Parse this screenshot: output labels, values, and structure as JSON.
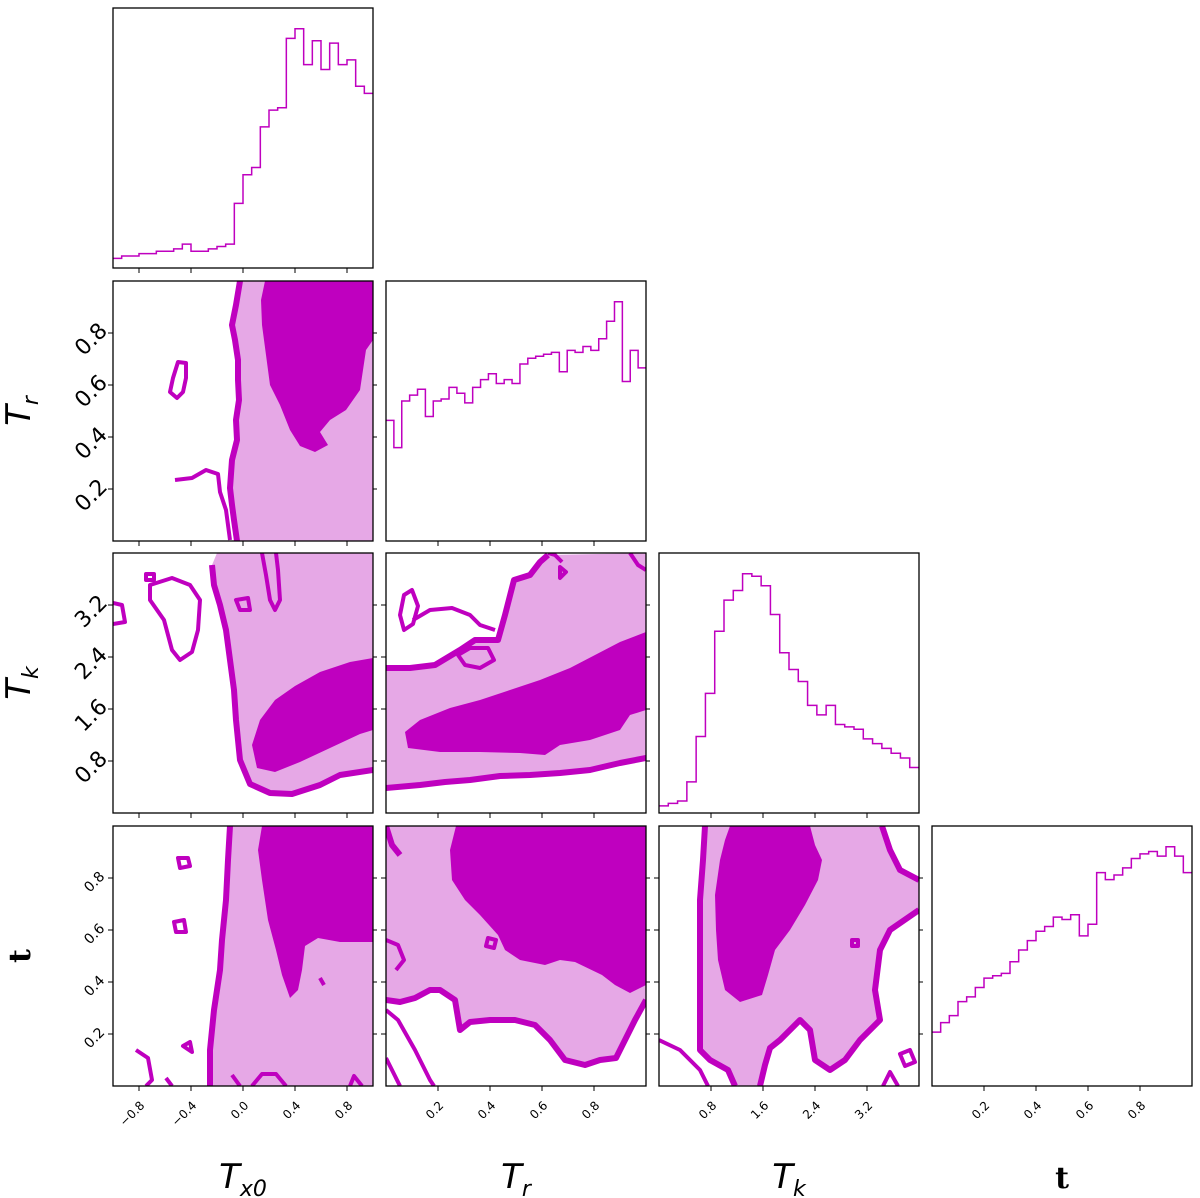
{
  "chart_data": {
    "type": "corner",
    "color": "#bf00bf",
    "fill_light": "#e6a8e6",
    "parameters": [
      {
        "key": "Tx0",
        "label_main": "T",
        "label_sub": "x0",
        "range": [
          -1.0,
          1.0
        ],
        "ticks": [
          "−0.8",
          "−0.4",
          "0.0",
          "0.4",
          "0.8"
        ],
        "tick_values": [
          -0.8,
          -0.4,
          0.0,
          0.4,
          0.8
        ]
      },
      {
        "key": "Tr",
        "label_main": "T",
        "label_sub": "r",
        "range": [
          0.0,
          1.0
        ],
        "ticks": [
          "0.2",
          "0.4",
          "0.6",
          "0.8"
        ],
        "tick_values": [
          0.2,
          0.4,
          0.6,
          0.8
        ]
      },
      {
        "key": "Tk",
        "label_main": "T",
        "label_sub": "k",
        "range": [
          0.0,
          4.0
        ],
        "ticks": [
          "0.8",
          "1.6",
          "2.4",
          "3.2"
        ],
        "tick_values": [
          0.8,
          1.6,
          2.4,
          3.2
        ]
      },
      {
        "key": "t",
        "label_main": "t",
        "label_sub": "",
        "range": [
          0.0,
          1.0
        ],
        "ticks": [
          "0.2",
          "0.4",
          "0.6",
          "0.8"
        ],
        "tick_values": [
          0.2,
          0.4,
          0.6,
          0.8
        ]
      }
    ],
    "histograms": {
      "Tx0": [
        0.04,
        0.05,
        0.05,
        0.06,
        0.06,
        0.07,
        0.07,
        0.08,
        0.1,
        0.07,
        0.07,
        0.08,
        0.09,
        0.1,
        0.27,
        0.39,
        0.42,
        0.59,
        0.66,
        0.67,
        0.96,
        1.0,
        0.85,
        0.95,
        0.83,
        0.94,
        0.85,
        0.87,
        0.76,
        0.73
      ],
      "Tr": [
        0.62,
        0.48,
        0.72,
        0.75,
        0.78,
        0.64,
        0.72,
        0.73,
        0.79,
        0.76,
        0.71,
        0.79,
        0.83,
        0.86,
        0.81,
        0.83,
        0.81,
        0.91,
        0.94,
        0.95,
        0.96,
        0.97,
        0.87,
        0.98,
        0.97,
        1.0,
        0.98,
        1.04,
        1.13,
        1.23,
        0.82,
        0.98,
        0.89
      ],
      "Tk": [
        0.03,
        0.04,
        0.05,
        0.13,
        0.32,
        0.5,
        0.76,
        0.89,
        0.93,
        1.0,
        0.99,
        0.95,
        0.83,
        0.67,
        0.6,
        0.55,
        0.45,
        0.41,
        0.45,
        0.37,
        0.36,
        0.35,
        0.31,
        0.29,
        0.27,
        0.25,
        0.23,
        0.19
      ],
      "t": [
        0.23,
        0.27,
        0.3,
        0.36,
        0.38,
        0.42,
        0.46,
        0.47,
        0.48,
        0.53,
        0.58,
        0.62,
        0.66,
        0.68,
        0.72,
        0.71,
        0.73,
        0.64,
        0.69,
        0.91,
        0.88,
        0.9,
        0.93,
        0.97,
        0.99,
        1.0,
        0.98,
        1.02,
        0.98,
        0.91
      ]
    }
  }
}
